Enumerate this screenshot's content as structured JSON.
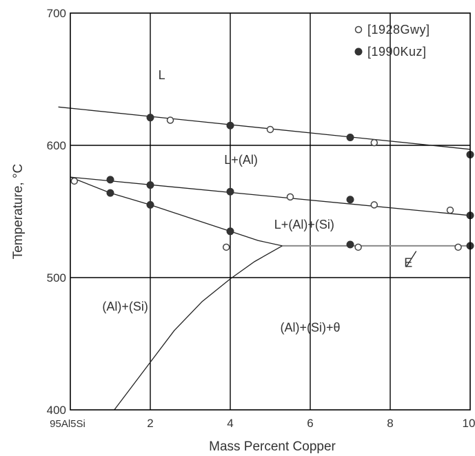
{
  "chart_data": {
    "type": "scatter",
    "title": "",
    "xlabel": "Mass Percent Copper",
    "ylabel": "Temperature, °C",
    "xlim": [
      0,
      10
    ],
    "ylim": [
      400,
      700
    ],
    "x_origin_label": "95Al5Si",
    "x_ticks": [
      "2",
      "4",
      "6",
      "8",
      "10"
    ],
    "y_ticks": [
      "700",
      "600",
      "500",
      "400"
    ],
    "x_tick_values": [
      2,
      4,
      6,
      8,
      10
    ],
    "y_tick_values": [
      700,
      600,
      500,
      400
    ],
    "grid": true,
    "legend_position": "top-right",
    "series": [
      {
        "name": "[1928Gwy]",
        "marker": "open-circle",
        "points": [
          [
            0.1,
            573
          ],
          [
            2.5,
            619
          ],
          [
            5.0,
            612
          ],
          [
            7.6,
            602
          ],
          [
            10.0,
            593
          ],
          [
            5.5,
            561
          ],
          [
            7.6,
            555
          ],
          [
            9.5,
            551
          ],
          [
            3.9,
            523
          ],
          [
            7.2,
            523
          ],
          [
            9.7,
            523
          ]
        ]
      },
      {
        "name": "[1990Kuz]",
        "marker": "filled-circle",
        "points": [
          [
            2.0,
            621
          ],
          [
            4.0,
            615
          ],
          [
            7.0,
            606
          ],
          [
            10.0,
            593
          ],
          [
            1.0,
            574
          ],
          [
            2.0,
            570
          ],
          [
            4.0,
            565
          ],
          [
            7.0,
            559
          ],
          [
            10.0,
            547
          ],
          [
            1.0,
            564
          ],
          [
            2.0,
            555
          ],
          [
            4.0,
            535
          ],
          [
            7.0,
            525
          ],
          [
            10.0,
            524
          ]
        ]
      }
    ],
    "lines": [
      {
        "name": "liquidus",
        "points": [
          [
            -0.3,
            629
          ],
          [
            10,
            597
          ]
        ]
      },
      {
        "name": "upper-boundary",
        "points": [
          [
            0,
            576
          ],
          [
            10,
            547
          ]
        ]
      },
      {
        "name": "lower-boundary",
        "points": [
          [
            0,
            576
          ],
          [
            1,
            564
          ],
          [
            2,
            555
          ],
          [
            3,
            545
          ],
          [
            4,
            535
          ],
          [
            4.7,
            528
          ],
          [
            5.3,
            524
          ]
        ]
      },
      {
        "name": "eutectic",
        "points": [
          [
            5.3,
            524
          ],
          [
            10,
            524
          ]
        ]
      },
      {
        "name": "solvus",
        "points": [
          [
            5.3,
            524
          ],
          [
            4.6,
            512
          ],
          [
            4.0,
            499
          ],
          [
            3.3,
            482
          ],
          [
            2.6,
            460
          ],
          [
            2.0,
            436
          ],
          [
            1.4,
            412
          ],
          [
            1.1,
            400
          ]
        ]
      },
      {
        "name": "e-leader",
        "points": [
          [
            8.4,
            508
          ],
          [
            8.65,
            520
          ]
        ]
      }
    ],
    "regions": [
      {
        "label": "L",
        "x": 2.2,
        "y": 650
      },
      {
        "label": "L+(Al)",
        "x": 3.85,
        "y": 586
      },
      {
        "label": "L+(Al)+(Si)",
        "x": 5.1,
        "y": 537
      },
      {
        "label": "(Al)+(Si)",
        "x": 0.8,
        "y": 475
      },
      {
        "label": "(Al)+(Si)+θ",
        "x": 5.25,
        "y": 459
      }
    ],
    "annotations": [
      {
        "label": "E",
        "x": 8.35,
        "y": 508
      }
    ]
  }
}
